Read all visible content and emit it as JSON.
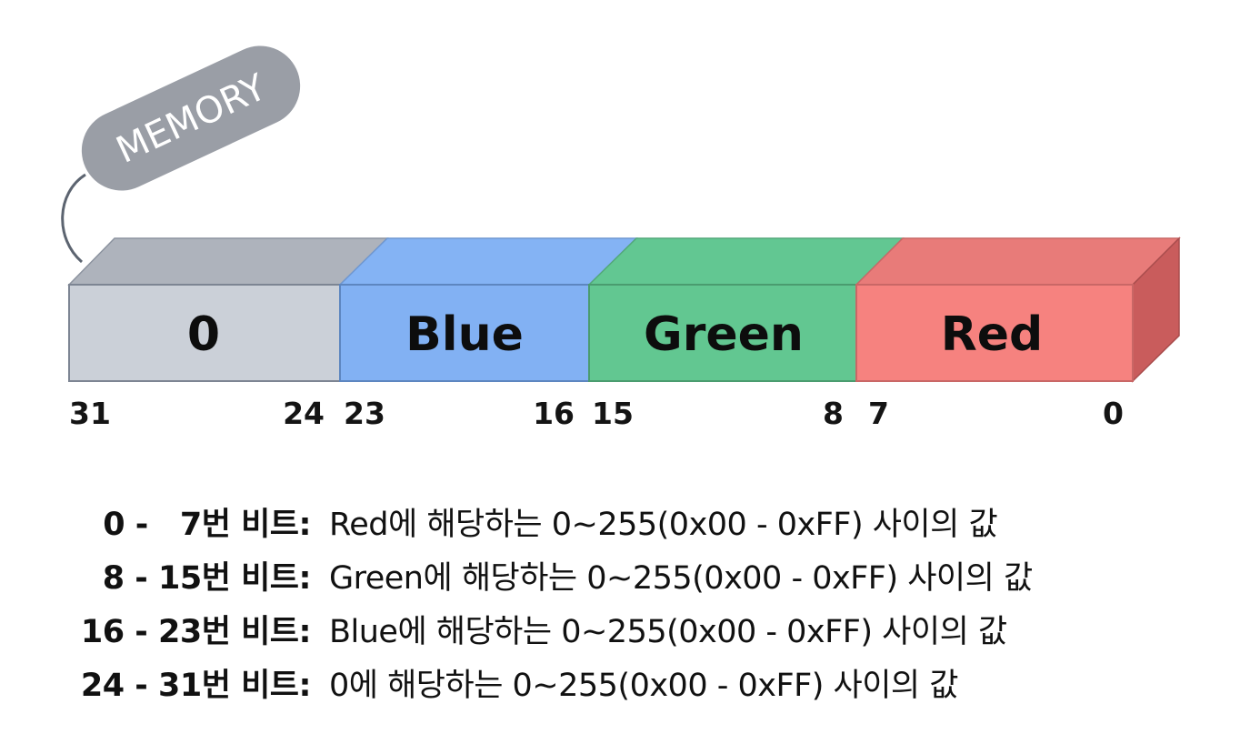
{
  "tag": "MEMORY",
  "segments": [
    {
      "label": "0",
      "high_bit": "31",
      "low_bit": "24",
      "front": "#cbd0d8",
      "top": "#aeb3bc"
    },
    {
      "label": "Blue",
      "high_bit": "23",
      "low_bit": "16",
      "front": "#82b1f3",
      "top": "#84b3f4"
    },
    {
      "label": "Green",
      "high_bit": "15",
      "low_bit": "8",
      "front": "#62c791",
      "top": "#62c792"
    },
    {
      "label": "Red",
      "high_bit": "7",
      "low_bit": "0",
      "front": "#f6827f",
      "top": "#e87b79",
      "side": "#c95c5c"
    }
  ],
  "legend": [
    {
      "key": "0 -   7번 비트:",
      "desc": "Red에 해당하는 0~255(0x00 - 0xFF) 사이의 값"
    },
    {
      "key": "8 - 15번 비트:",
      "desc": "Green에 해당하는 0~255(0x00 - 0xFF) 사이의 값"
    },
    {
      "key": "16 - 23번 비트:",
      "desc": "Blue에 해당하는 0~255(0x00 - 0xFF) 사이의 값"
    },
    {
      "key": "24 - 31번 비트:",
      "desc": "0에 해당하는 0~255(0x00 - 0xFF) 사이의 값"
    }
  ]
}
